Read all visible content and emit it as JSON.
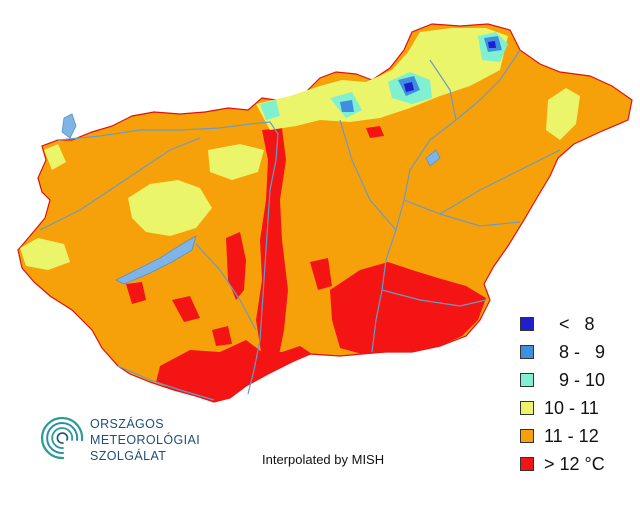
{
  "legend": {
    "items": [
      {
        "label": "   <   8",
        "color": "#1f1fd0"
      },
      {
        "label": "   8 -   9",
        "color": "#3f8fe0"
      },
      {
        "label": "   9 - 10",
        "color": "#7ff0d0"
      },
      {
        "label": "10 - 11",
        "color": "#eaf56a"
      },
      {
        "label": "11 - 12",
        "color": "#f7a10a"
      },
      {
        "label": "> 12 °C",
        "color": "#f41414"
      }
    ]
  },
  "logo": {
    "line1": "ORSZÁGOS",
    "line2": "METEOROLÓGIAI",
    "line3": "SZOLGÁLAT"
  },
  "credit": "Interpolated by MISH",
  "colors": {
    "base": "#f7a10a",
    "hot": "#f41414",
    "warm_mid": "#eaf56a",
    "cool": "#7ff0d0",
    "cold": "#3f8fe0",
    "coldest": "#1f1fd0",
    "border": "#e01010",
    "rivers": "#6a9bc4",
    "lakes": "#7fb4e6"
  }
}
